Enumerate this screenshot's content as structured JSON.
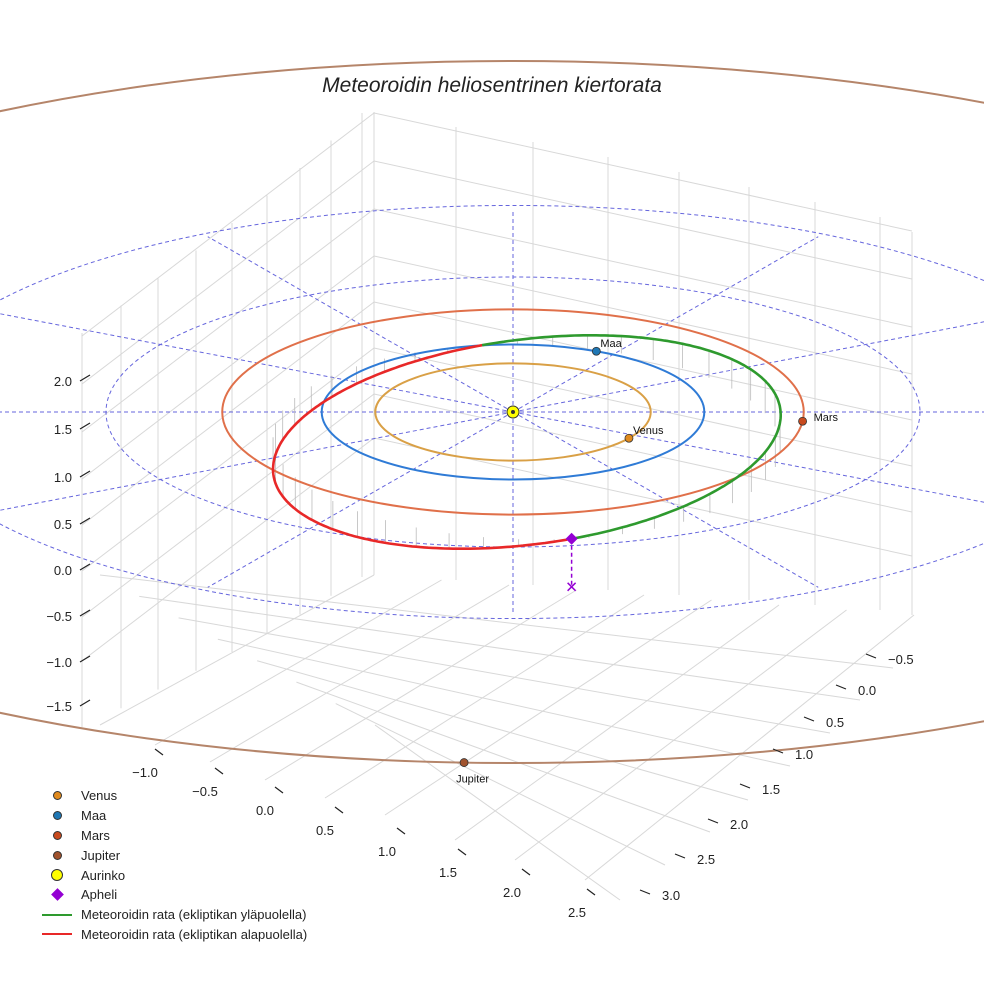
{
  "chart_data": {
    "type": "line3d",
    "title": "Meteoroidin heliosentrinen kiertorata",
    "axes": {
      "x_ticks": [
        "−1.0",
        "−0.5",
        "0.0",
        "0.5",
        "1.0",
        "1.5",
        "2.0",
        "2.5"
      ],
      "y_ticks": [
        "−0.5",
        "0.0",
        "0.5",
        "1.0",
        "1.5",
        "2.0",
        "2.5",
        "3.0"
      ],
      "z_ticks": [
        "2.0",
        "1.5",
        "1.0",
        "0.5",
        "0.0",
        "−0.5",
        "−1.0",
        "−1.5"
      ],
      "grid": true
    },
    "ecliptic_reference_circles_au": [
      2,
      3
    ],
    "planets": [
      {
        "name": "Venus",
        "label": "Venus",
        "orbit_radius_au": 0.72,
        "orbit_color": "#d9a046",
        "marker_color": "#e08a1e"
      },
      {
        "name": "Maa",
        "label": "Maa",
        "orbit_radius_au": 1.0,
        "orbit_color": "#2f7bd6",
        "marker_color": "#1f77b4"
      },
      {
        "name": "Mars",
        "label": "Mars",
        "orbit_radius_au": 1.52,
        "orbit_color": "#e0704a",
        "marker_color": "#c84a1e"
      },
      {
        "name": "Jupiter",
        "label": "Jupiter",
        "orbit_radius_au": 5.2,
        "orbit_color": "#b5856a",
        "marker_color": "#a0522d"
      }
    ],
    "sun": {
      "name": "Aurinko",
      "color": "#ffff00"
    },
    "meteoroid_orbit": {
      "semi_major_axis_au": 1.45,
      "eccentricity": 0.31,
      "inclination_deg": 28,
      "segments": [
        {
          "name": "Meteoroidin rata (ekliptikan yläpuolella)",
          "color": "#2e9a2e"
        },
        {
          "name": "Meteoroidin rata (ekliptikan alapuolella)",
          "color": "#e82828"
        }
      ]
    },
    "aphelion": {
      "name": "Apheli",
      "color": "#9400d3"
    },
    "legend": [
      {
        "label": "Venus",
        "kind": "dot",
        "color": "#e08a1e"
      },
      {
        "label": "Maa",
        "kind": "dot",
        "color": "#1f77b4"
      },
      {
        "label": "Mars",
        "kind": "dot",
        "color": "#c84a1e"
      },
      {
        "label": "Jupiter",
        "kind": "dot",
        "color": "#a0522d"
      },
      {
        "label": "Aurinko",
        "kind": "bigdot",
        "color": "#ffff00"
      },
      {
        "label": "Apheli",
        "kind": "diamond",
        "color": "#9400d3"
      },
      {
        "label": "Meteoroidin rata (ekliptikan yläpuolella)",
        "kind": "line",
        "color": "#2e9a2e"
      },
      {
        "label": "Meteoroidin rata (ekliptikan alapuolella)",
        "kind": "line",
        "color": "#e82828"
      }
    ]
  }
}
